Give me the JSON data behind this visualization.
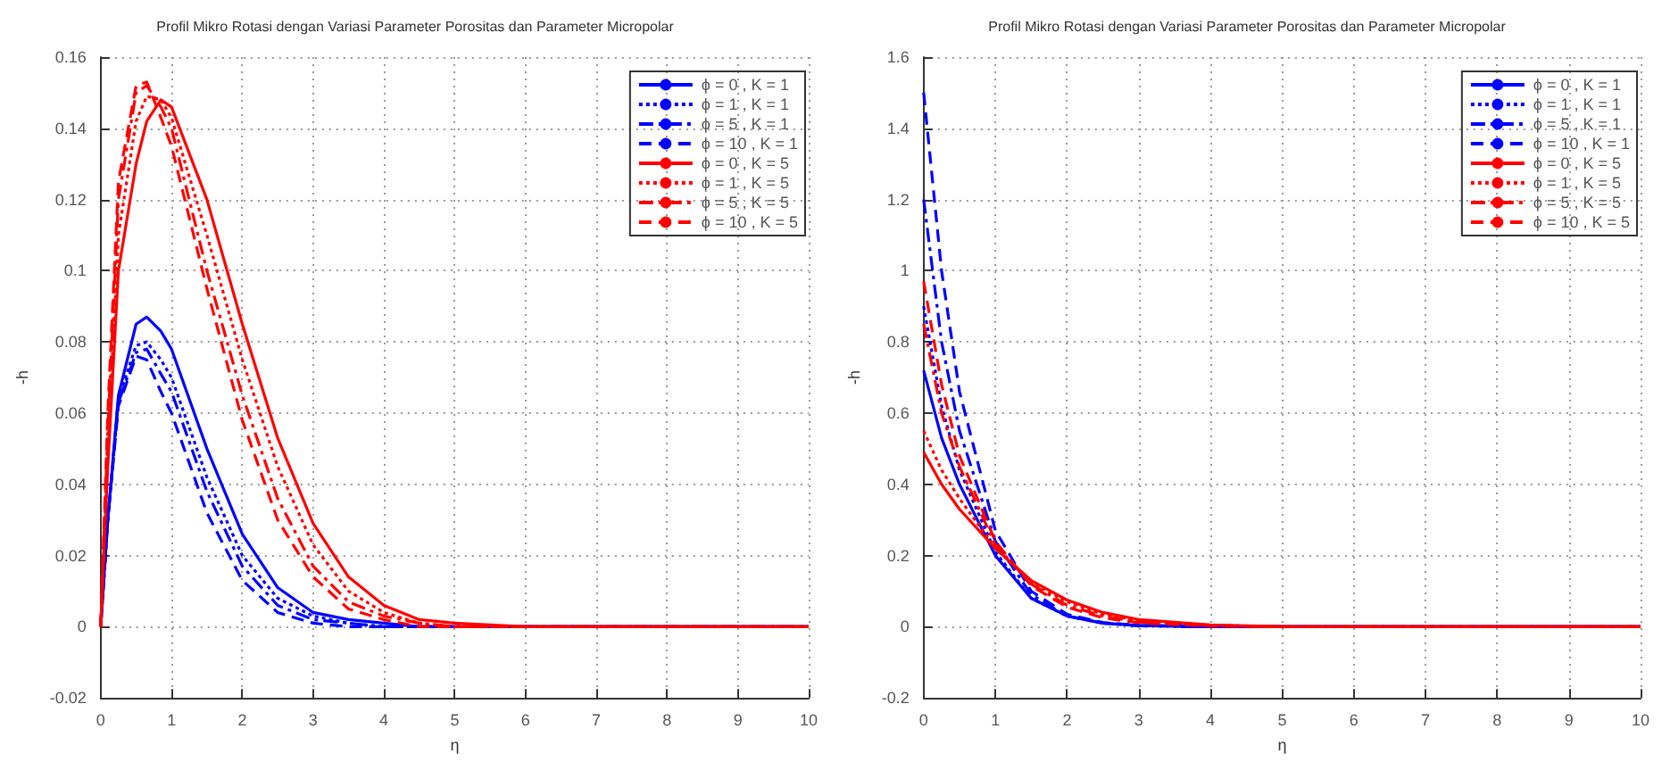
{
  "chart_data": [
    {
      "type": "line",
      "title": "Profil Mikro Rotasi dengan Variasi Parameter Porositas dan Parameter Micropolar",
      "xlabel": "η",
      "ylabel": "-h",
      "x": [
        0,
        0.1,
        0.25,
        0.5,
        0.65,
        0.85,
        1,
        1.5,
        2,
        2.5,
        3,
        3.5,
        4,
        4.5,
        5,
        6,
        8,
        10
      ],
      "xlim": [
        0,
        10
      ],
      "xticks": [
        0,
        1,
        2,
        3,
        4,
        5,
        6,
        7,
        8,
        9,
        10
      ],
      "ylim": [
        -0.02,
        0.16
      ],
      "yticks": [
        -0.02,
        0,
        0.02,
        0.04,
        0.06,
        0.08,
        0.1,
        0.12,
        0.14,
        0.16
      ],
      "grid": true,
      "legend": "top right",
      "marker": "none",
      "series": [
        {
          "name": "ϕ = 0 , K = 1",
          "color": "#0000ff",
          "line_style": "solid",
          "values": [
            0,
            0.03,
            0.065,
            0.085,
            0.087,
            0.083,
            0.078,
            0.05,
            0.026,
            0.011,
            0.004,
            0.002,
            0.001,
            0,
            0,
            0,
            0,
            0
          ]
        },
        {
          "name": "ϕ = 1 , K = 1",
          "color": "#0000ff",
          "line_style": "dotted",
          "values": [
            0,
            0.03,
            0.064,
            0.079,
            0.08,
            0.075,
            0.07,
            0.042,
            0.02,
            0.008,
            0.003,
            0.001,
            0,
            0,
            0,
            0,
            0,
            0
          ]
        },
        {
          "name": "ϕ = 5 , K = 1",
          "color": "#0000ff",
          "line_style": "dashdot",
          "values": [
            0,
            0.03,
            0.063,
            0.077,
            0.078,
            0.071,
            0.066,
            0.038,
            0.017,
            0.006,
            0.002,
            0.001,
            0,
            0,
            0,
            0,
            0,
            0
          ]
        },
        {
          "name": "ϕ = 10 , K = 1",
          "color": "#0000ff",
          "line_style": "dashed",
          "values": [
            0,
            0.03,
            0.062,
            0.076,
            0.075,
            0.066,
            0.06,
            0.032,
            0.013,
            0.004,
            0.001,
            0,
            0,
            0,
            0,
            0,
            0,
            0
          ]
        },
        {
          "name": "ϕ = 0 , K = 5",
          "color": "#ff0000",
          "line_style": "solid",
          "values": [
            0,
            0.045,
            0.1,
            0.13,
            0.142,
            0.148,
            0.146,
            0.12,
            0.085,
            0.053,
            0.029,
            0.014,
            0.006,
            0.002,
            0.001,
            0,
            0,
            0
          ]
        },
        {
          "name": "ϕ = 1 , K = 5",
          "color": "#ff0000",
          "line_style": "dotted",
          "values": [
            0,
            0.05,
            0.11,
            0.142,
            0.149,
            0.148,
            0.143,
            0.11,
            0.075,
            0.045,
            0.023,
            0.01,
            0.004,
            0.001,
            0,
            0,
            0,
            0
          ]
        },
        {
          "name": "ϕ = 5 , K = 5",
          "color": "#ff0000",
          "line_style": "dashdot",
          "values": [
            0,
            0.055,
            0.12,
            0.15,
            0.152,
            0.146,
            0.14,
            0.1,
            0.065,
            0.036,
            0.017,
            0.007,
            0.003,
            0.001,
            0,
            0,
            0,
            0
          ]
        },
        {
          "name": "ϕ = 10 , K = 5",
          "color": "#ff0000",
          "line_style": "dashed",
          "values": [
            0,
            0.06,
            0.125,
            0.152,
            0.153,
            0.143,
            0.135,
            0.095,
            0.058,
            0.03,
            0.014,
            0.005,
            0.002,
            0,
            0,
            0,
            0,
            0
          ]
        }
      ]
    },
    {
      "type": "line",
      "title": "Profil Mikro Rotasi dengan Variasi Parameter Porositas dan Parameter Micropolar",
      "xlabel": "η",
      "ylabel": "-h",
      "x": [
        0,
        0.25,
        0.5,
        1,
        1.5,
        2,
        2.5,
        3,
        4,
        5,
        10
      ],
      "xlim": [
        0,
        10
      ],
      "xticks": [
        0,
        1,
        2,
        3,
        4,
        5,
        6,
        7,
        8,
        9,
        10
      ],
      "ylim": [
        -0.2,
        1.6
      ],
      "yticks": [
        -0.2,
        0,
        0.2,
        0.4,
        0.6,
        0.8,
        1,
        1.2,
        1.4,
        1.6
      ],
      "grid": true,
      "legend": "top right",
      "marker": "none",
      "series": [
        {
          "name": "ϕ = 0 , K = 1",
          "color": "#0000ff",
          "line_style": "solid",
          "values": [
            0.72,
            0.53,
            0.4,
            0.2,
            0.08,
            0.03,
            0.01,
            0.003,
            0,
            0,
            0
          ]
        },
        {
          "name": "ϕ = 1 , K = 1",
          "color": "#0000ff",
          "line_style": "dotted",
          "values": [
            0.9,
            0.62,
            0.44,
            0.21,
            0.08,
            0.03,
            0.01,
            0.003,
            0,
            0,
            0
          ]
        },
        {
          "name": "ϕ = 5 , K = 1",
          "color": "#0000ff",
          "line_style": "dashdot",
          "values": [
            1.2,
            0.8,
            0.55,
            0.24,
            0.09,
            0.03,
            0.01,
            0.003,
            0,
            0,
            0
          ]
        },
        {
          "name": "ϕ = 10 , K = 1",
          "color": "#0000ff",
          "line_style": "dashed",
          "values": [
            1.5,
            1.0,
            0.66,
            0.27,
            0.1,
            0.035,
            0.012,
            0.004,
            0,
            0,
            0
          ]
        },
        {
          "name": "ϕ = 0 , K = 5",
          "color": "#ff0000",
          "line_style": "solid",
          "values": [
            0.49,
            0.4,
            0.33,
            0.22,
            0.13,
            0.075,
            0.04,
            0.02,
            0.005,
            0,
            0
          ]
        },
        {
          "name": "ϕ = 1 , K = 5",
          "color": "#ff0000",
          "line_style": "dotted",
          "values": [
            0.55,
            0.44,
            0.36,
            0.22,
            0.125,
            0.07,
            0.035,
            0.017,
            0.004,
            0,
            0
          ]
        },
        {
          "name": "ϕ = 5 , K = 5",
          "color": "#ff0000",
          "line_style": "dashdot",
          "values": [
            0.85,
            0.6,
            0.45,
            0.23,
            0.12,
            0.06,
            0.03,
            0.013,
            0.003,
            0,
            0
          ]
        },
        {
          "name": "ϕ = 10 , K = 5",
          "color": "#ff0000",
          "line_style": "dashed",
          "values": [
            0.97,
            0.68,
            0.48,
            0.24,
            0.115,
            0.055,
            0.025,
            0.011,
            0.002,
            0,
            0
          ]
        }
      ]
    }
  ]
}
